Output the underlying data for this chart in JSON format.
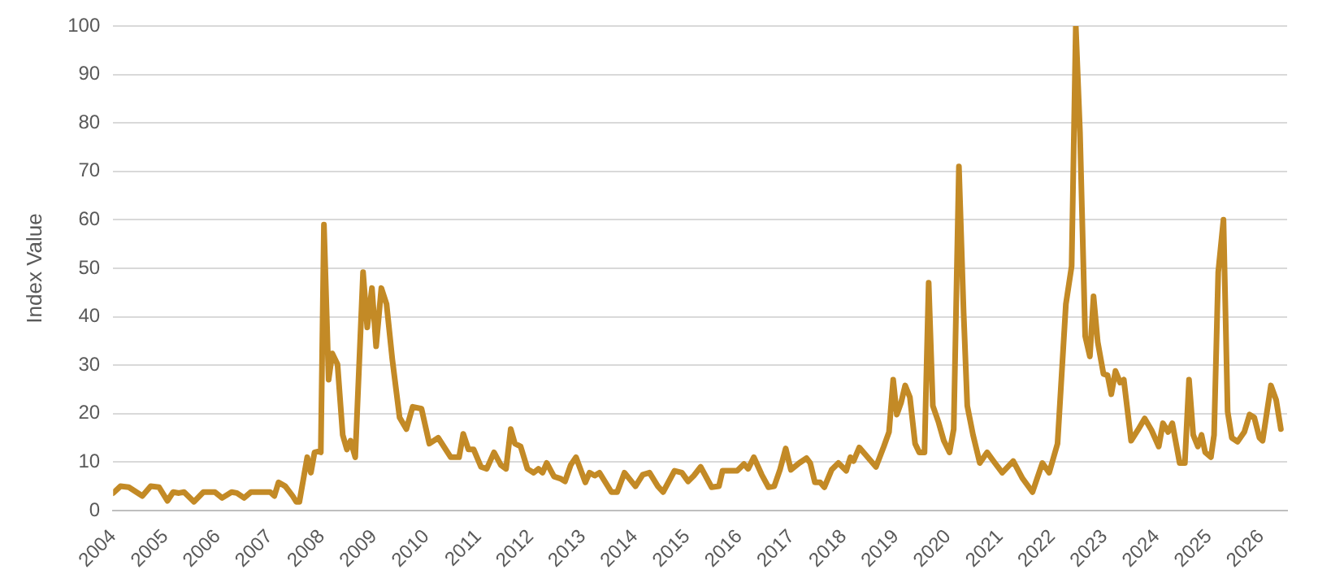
{
  "chart_data": {
    "type": "line",
    "ylabel": "Index Value",
    "xlim": [
      2004,
      2026.5
    ],
    "xticks": [
      2004,
      2005,
      2006,
      2007,
      2008,
      2009,
      2010,
      2011,
      2012,
      2013,
      2014,
      2015,
      2016,
      2017,
      2018,
      2019,
      2020,
      2021,
      2022,
      2023,
      2024,
      2025,
      2026
    ],
    "ylim": [
      0,
      100
    ],
    "yticks": [
      0,
      10,
      20,
      30,
      40,
      50,
      60,
      70,
      80,
      90,
      100
    ],
    "grid": "y",
    "legend": false,
    "marker": "none",
    "line_style": "solid",
    "series": [
      {
        "color": "#c38a26",
        "x": [
          2004.0,
          2004.14,
          2004.3,
          2004.56,
          2004.72,
          2004.88,
          2005.04,
          2005.15,
          2005.26,
          2005.36,
          2005.55,
          2005.73,
          2005.95,
          2006.09,
          2006.27,
          2006.37,
          2006.51,
          2006.64,
          2007.01,
          2007.09,
          2007.17,
          2007.3,
          2007.44,
          2007.51,
          2007.57,
          2007.72,
          2007.79,
          2007.86,
          2007.94,
          2007.98,
          2008.04,
          2008.13,
          2008.2,
          2008.3,
          2008.4,
          2008.48,
          2008.55,
          2008.64,
          2008.79,
          2008.87,
          2008.96,
          2009.04,
          2009.14,
          2009.24,
          2009.35,
          2009.49,
          2009.62,
          2009.74,
          2009.91,
          2010.06,
          2010.23,
          2010.47,
          2010.63,
          2010.71,
          2010.81,
          2010.91,
          2011.05,
          2011.16,
          2011.3,
          2011.43,
          2011.53,
          2011.62,
          2011.7,
          2011.81,
          2011.94,
          2012.06,
          2012.15,
          2012.23,
          2012.31,
          2012.45,
          2012.57,
          2012.66,
          2012.77,
          2012.87,
          2013.05,
          2013.13,
          2013.23,
          2013.32,
          2013.55,
          2013.66,
          2013.8,
          2014.01,
          2014.15,
          2014.28,
          2014.44,
          2014.54,
          2014.76,
          2014.9,
          2015.02,
          2015.13,
          2015.26,
          2015.47,
          2015.61,
          2015.68,
          2015.96,
          2016.09,
          2016.17,
          2016.28,
          2016.43,
          2016.56,
          2016.67,
          2016.78,
          2016.89,
          2016.99,
          2017.15,
          2017.29,
          2017.36,
          2017.45,
          2017.55,
          2017.63,
          2017.77,
          2017.9,
          2018.05,
          2018.13,
          2018.19,
          2018.3,
          2018.43,
          2018.62,
          2018.77,
          2018.87,
          2018.95,
          2019.02,
          2019.1,
          2019.18,
          2019.27,
          2019.37,
          2019.45,
          2019.55,
          2019.63,
          2019.71,
          2019.82,
          2019.92,
          2020.03,
          2020.11,
          2020.21,
          2020.3,
          2020.37,
          2020.48,
          2020.61,
          2020.75,
          2020.9,
          2021.04,
          2021.25,
          2021.43,
          2021.62,
          2021.81,
          2021.94,
          2022.1,
          2022.26,
          2022.37,
          2022.45,
          2022.53,
          2022.63,
          2022.72,
          2022.79,
          2022.87,
          2022.98,
          2023.06,
          2023.13,
          2023.21,
          2023.3,
          2023.37,
          2023.51,
          2023.64,
          2023.77,
          2023.9,
          2024.04,
          2024.12,
          2024.22,
          2024.3,
          2024.44,
          2024.54,
          2024.62,
          2024.7,
          2024.79,
          2024.86,
          2024.93,
          2025.04,
          2025.1,
          2025.18,
          2025.28,
          2025.36,
          2025.44,
          2025.55,
          2025.68,
          2025.78,
          2025.87,
          2025.97,
          2026.03,
          2026.19,
          2026.29,
          2026.38
        ],
        "values": [
          3.6,
          5,
          4.8,
          3,
          5,
          4.8,
          2,
          3.8,
          3.6,
          3.8,
          1.8,
          3.8,
          3.8,
          2.6,
          3.8,
          3.6,
          2.6,
          3.8,
          3.8,
          3,
          5.8,
          5,
          3,
          1.8,
          1.8,
          11,
          7.8,
          12,
          12.2,
          12,
          59,
          27,
          32.4,
          30.2,
          15.6,
          12.6,
          14.4,
          11,
          49.2,
          37.8,
          45.9,
          33.9,
          45.9,
          42.6,
          31.2,
          19.2,
          16.8,
          21.4,
          21,
          13.8,
          15,
          11,
          11,
          15.8,
          12.6,
          12.6,
          9,
          8.6,
          12,
          9.4,
          8.6,
          16.8,
          13.8,
          13.2,
          8.6,
          7.8,
          8.6,
          7.8,
          9.8,
          7,
          6.6,
          6,
          9.4,
          11,
          5.8,
          7.8,
          7.2,
          7.8,
          3.8,
          3.8,
          7.8,
          5,
          7.4,
          7.8,
          5,
          3.8,
          8.2,
          7.8,
          6,
          7.2,
          9,
          4.8,
          5,
          8.2,
          8.2,
          9.6,
          8.6,
          11,
          7.4,
          4.8,
          5,
          8.4,
          12.8,
          8.4,
          9.8,
          10.8,
          9.8,
          5.8,
          5.8,
          4.8,
          8.4,
          9.8,
          8.2,
          11,
          10.2,
          13,
          11.4,
          9,
          13.2,
          16.2,
          27,
          19.8,
          22.2,
          25.8,
          23.4,
          13.8,
          12,
          12,
          47,
          21.6,
          18.2,
          14.4,
          12,
          16.8,
          71,
          40.8,
          21.6,
          15.6,
          9.8,
          12,
          9.8,
          7.8,
          10.2,
          6.6,
          3.8,
          9.8,
          7.8,
          13.8,
          42.6,
          50.4,
          99.9,
          78,
          36,
          31.8,
          44.2,
          34.8,
          28.2,
          27.9,
          24,
          28.8,
          26.4,
          27,
          14.4,
          16.6,
          19,
          16.6,
          13.2,
          18,
          16.2,
          18,
          9.8,
          9.8,
          27,
          15.6,
          13.2,
          15.6,
          12,
          11,
          15.6,
          49.2,
          60,
          20.4,
          15,
          14.2,
          16.2,
          19.8,
          19.2,
          15,
          14.4,
          25.8,
          22.8,
          16.8
        ]
      }
    ]
  }
}
